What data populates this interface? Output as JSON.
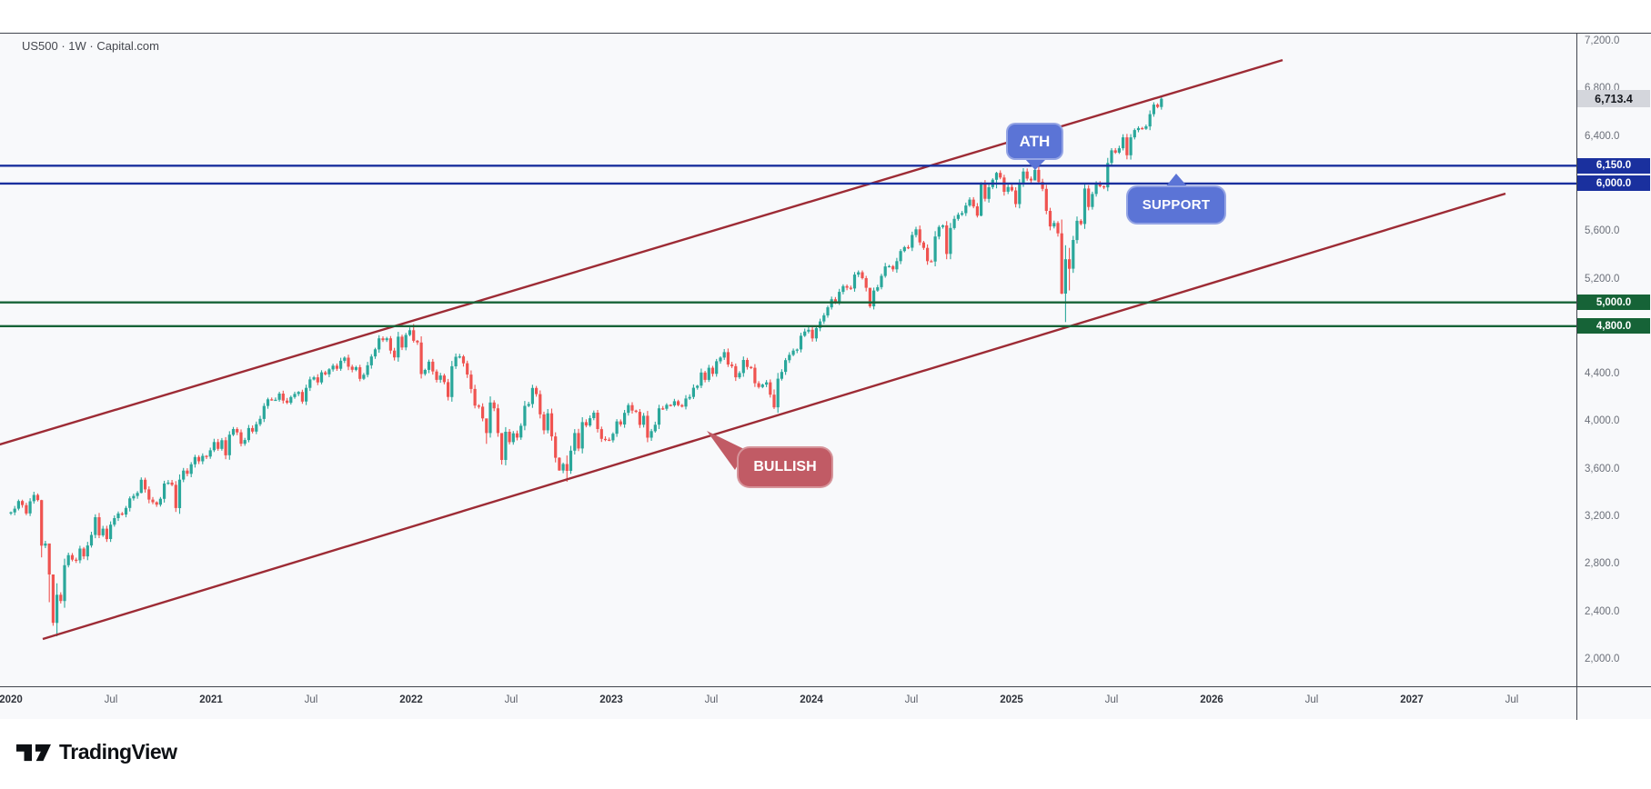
{
  "header": {
    "symbol_title": "US500 · 1W · Capital.com"
  },
  "y_axis": {
    "ticks": [
      "7,200.0",
      "6,800.0",
      "6,400.0",
      "6,000.0",
      "5,600.0",
      "5,200.0",
      "4,800.0",
      "4,400.0",
      "4,000.0",
      "3,600.0",
      "3,200.0",
      "2,800.0",
      "2,400.0",
      "2,000.0"
    ]
  },
  "x_axis": {
    "ticks": [
      {
        "label": "2020",
        "offset": 0,
        "major": true
      },
      {
        "label": "Jul",
        "offset": 0.5,
        "major": false
      },
      {
        "label": "2021",
        "offset": 1,
        "major": true
      },
      {
        "label": "Jul",
        "offset": 1.5,
        "major": false
      },
      {
        "label": "2022",
        "offset": 2,
        "major": true
      },
      {
        "label": "Jul",
        "offset": 2.5,
        "major": false
      },
      {
        "label": "2023",
        "offset": 3,
        "major": true
      },
      {
        "label": "Jul",
        "offset": 3.5,
        "major": false
      },
      {
        "label": "2024",
        "offset": 4,
        "major": true
      },
      {
        "label": "Jul",
        "offset": 4.5,
        "major": false
      },
      {
        "label": "2025",
        "offset": 5,
        "major": true
      },
      {
        "label": "Jul",
        "offset": 5.5,
        "major": false
      },
      {
        "label": "2026",
        "offset": 6,
        "major": true
      },
      {
        "label": "Jul",
        "offset": 6.5,
        "major": false
      },
      {
        "label": "2027",
        "offset": 7,
        "major": true
      },
      {
        "label": "Jul",
        "offset": 7.5,
        "major": false
      }
    ]
  },
  "levels": [
    {
      "price": 6150,
      "label": "6,150.0",
      "color": "#1a309e"
    },
    {
      "price": 6000,
      "label": "6,000.0",
      "color": "#1a309e"
    },
    {
      "price": 5000,
      "label": "5,000.0",
      "color": "#166337"
    },
    {
      "price": 4800,
      "label": "4,800.0",
      "color": "#166337"
    }
  ],
  "last_price": {
    "value": 6713.4,
    "label": "6,713.4",
    "bg": "#d4d6dc",
    "text_color": "#16191f"
  },
  "callouts": {
    "ath": {
      "text": "ATH",
      "bg": "#5b74d6"
    },
    "support": {
      "text": "SUPPORT",
      "bg": "#5b74d6"
    },
    "bullish": {
      "text": "BULLISH",
      "bg": "#c15b65"
    }
  },
  "footer": {
    "brand": "TradingView"
  },
  "chart_data": {
    "type": "candlestick",
    "title": "US500 1W Capital.com",
    "timeframe": "1W",
    "data_start": "2020-01",
    "data_end": "2025-10",
    "axis_end": "2027-12",
    "y_range": [
      2000,
      7200
    ],
    "y_tick_step": 400,
    "up_color": "#2aa79b",
    "down_color": "#ef5350",
    "last_price": 6713.4,
    "horizontal_levels": [
      6150,
      6000,
      5000,
      4800
    ],
    "channel": {
      "color": "#9d2b35",
      "lines": [
        {
          "w1": -2.9,
          "p1": 3805,
          "w2": 331.6,
          "p2": 7039
        },
        {
          "w1": 8.3,
          "p1": 2168,
          "w2": 389.7,
          "p2": 5915
        }
      ]
    },
    "weekly_closes": [
      3234,
      3265,
      3329,
      3295,
      3225,
      3327,
      3380,
      3337,
      2954,
      2972,
      2711,
      2304,
      2541,
      2488,
      2789,
      2874,
      2836,
      2830,
      2929,
      2863,
      2955,
      3044,
      3193,
      3041,
      3097,
      3009,
      3130,
      3185,
      3224,
      3215,
      3271,
      3351,
      3372,
      3397,
      3508,
      3427,
      3341,
      3319,
      3298,
      3348,
      3477,
      3484,
      3465,
      3270,
      3509,
      3585,
      3558,
      3638,
      3699,
      3663,
      3709,
      3703,
      3756,
      3825,
      3768,
      3841,
      3714,
      3887,
      3935,
      3907,
      3811,
      3842,
      3943,
      3913,
      3975,
      4020,
      4129,
      4185,
      4180,
      4181,
      4233,
      4174,
      4156,
      4204,
      4230,
      4247,
      4166,
      4281,
      4352,
      4370,
      4327,
      4412,
      4395,
      4437,
      4468,
      4442,
      4509,
      4535,
      4459,
      4433,
      4455,
      4357,
      4391,
      4471,
      4545,
      4605,
      4698,
      4683,
      4698,
      4595,
      4538,
      4712,
      4621,
      4726,
      4766,
      4677,
      4663,
      4398,
      4432,
      4501,
      4419,
      4349,
      4385,
      4329,
      4204,
      4463,
      4543,
      4546,
      4488,
      4393,
      4272,
      4132,
      4123,
      4024,
      3901,
      4158,
      4109,
      3901,
      3675,
      3912,
      3825,
      3899,
      3863,
      3962,
      4130,
      4145,
      4280,
      4228,
      4058,
      3924,
      4067,
      3873,
      3693,
      3586,
      3640,
      3583,
      3753,
      3901,
      3771,
      3993,
      3965,
      4026,
      4072,
      3934,
      3852,
      3845,
      3840,
      3895,
      3999,
      3973,
      4071,
      4136,
      4090,
      4079,
      3970,
      4046,
      3862,
      3917,
      3971,
      4109,
      4105,
      4138,
      4134,
      4169,
      4136,
      4124,
      4192,
      4205,
      4282,
      4299,
      4410,
      4348,
      4450,
      4399,
      4505,
      4536,
      4582,
      4478,
      4464,
      4370,
      4406,
      4516,
      4457,
      4450,
      4320,
      4288,
      4309,
      4328,
      4224,
      4117,
      4358,
      4415,
      4514,
      4559,
      4595,
      4604,
      4719,
      4755,
      4770,
      4697,
      4784,
      4840,
      4891,
      4959,
      5027,
      5006,
      5089,
      5137,
      5124,
      5117,
      5234,
      5254,
      5204,
      5123,
      4967,
      5100,
      5128,
      5223,
      5303,
      5305,
      5278,
      5347,
      5432,
      5465,
      5460,
      5567,
      5615,
      5505,
      5459,
      5347,
      5344,
      5554,
      5635,
      5648,
      5408,
      5626,
      5703,
      5738,
      5751,
      5815,
      5865,
      5808,
      5729,
      5996,
      5871,
      5969,
      6032,
      6090,
      6051,
      5931,
      5971,
      5942,
      5827,
      5997,
      6101,
      6041,
      6026,
      6115,
      6013,
      5955,
      5770,
      5639,
      5668,
      5581,
      5074,
      5363,
      5283,
      5525,
      5687,
      5660,
      5958,
      5803,
      5912,
      6000,
      5977,
      5968,
      6173,
      6279,
      6260,
      6297,
      6389,
      6238,
      6389,
      6450,
      6467,
      6460,
      6481,
      6584,
      6664,
      6644,
      6713.4
    ],
    "wick_overrides": {
      "7": [
        3393,
        3325
      ],
      "8": [
        3340,
        2855
      ],
      "10": [
        2882,
        2478
      ],
      "11": [
        2562,
        2280
      ],
      "12": [
        2637,
        2191
      ],
      "34": [
        3528,
        3394
      ],
      "105": [
        4818,
        4662
      ],
      "124": [
        3981,
        3810
      ],
      "128": [
        3838,
        3636
      ],
      "143": [
        3698,
        3584
      ],
      "145": [
        3712,
        3491
      ],
      "199": [
        4268,
        4103
      ],
      "224": [
        5080,
        4953
      ],
      "253": [
        6012,
        5724
      ],
      "257": [
        6099,
        5960
      ],
      "267": [
        6127,
        6028
      ],
      "268": [
        6147,
        5992
      ],
      "274": [
        5697,
        5069
      ],
      "275": [
        5481,
        4835
      ],
      "276": [
        5459,
        5101
      ],
      "300": [
        6740,
        6622
      ]
    }
  }
}
